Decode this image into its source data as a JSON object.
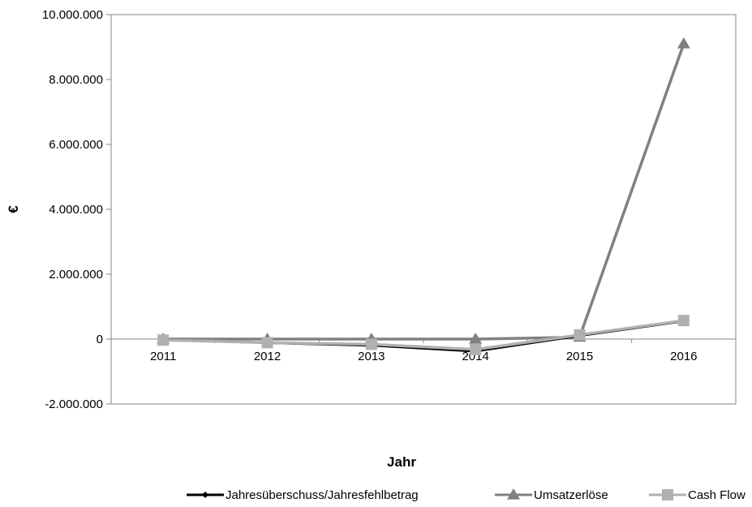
{
  "chart_data": {
    "type": "line",
    "xlabel": "Jahr",
    "ylabel": "€",
    "ylim": [
      -2000000,
      10000000
    ],
    "yticks": [
      "-2.000.000",
      "0",
      "2.000.000",
      "4.000.000",
      "6.000.000",
      "8.000.000",
      "10.000.000"
    ],
    "ytick_values": [
      -2000000,
      0,
      2000000,
      4000000,
      6000000,
      8000000,
      10000000
    ],
    "categories": [
      "2011",
      "2012",
      "2013",
      "2014",
      "2015",
      "2016"
    ],
    "grid": false,
    "legend_position": "bottom",
    "series": [
      {
        "name": "Jahresüberschuss/Jahresfehlbetrag",
        "values": [
          -20000,
          -120000,
          -200000,
          -380000,
          100000,
          550000
        ],
        "color": "#000000",
        "marker": "diamond"
      },
      {
        "name": "Umsatzerlöse",
        "values": [
          0,
          0,
          0,
          0,
          60000,
          9100000
        ],
        "color": "#808080",
        "marker": "triangle"
      },
      {
        "name": "Cash Flow",
        "values": [
          -30000,
          -110000,
          -160000,
          -320000,
          130000,
          570000
        ],
        "color": "#b0b0b0",
        "marker": "square"
      }
    ]
  }
}
